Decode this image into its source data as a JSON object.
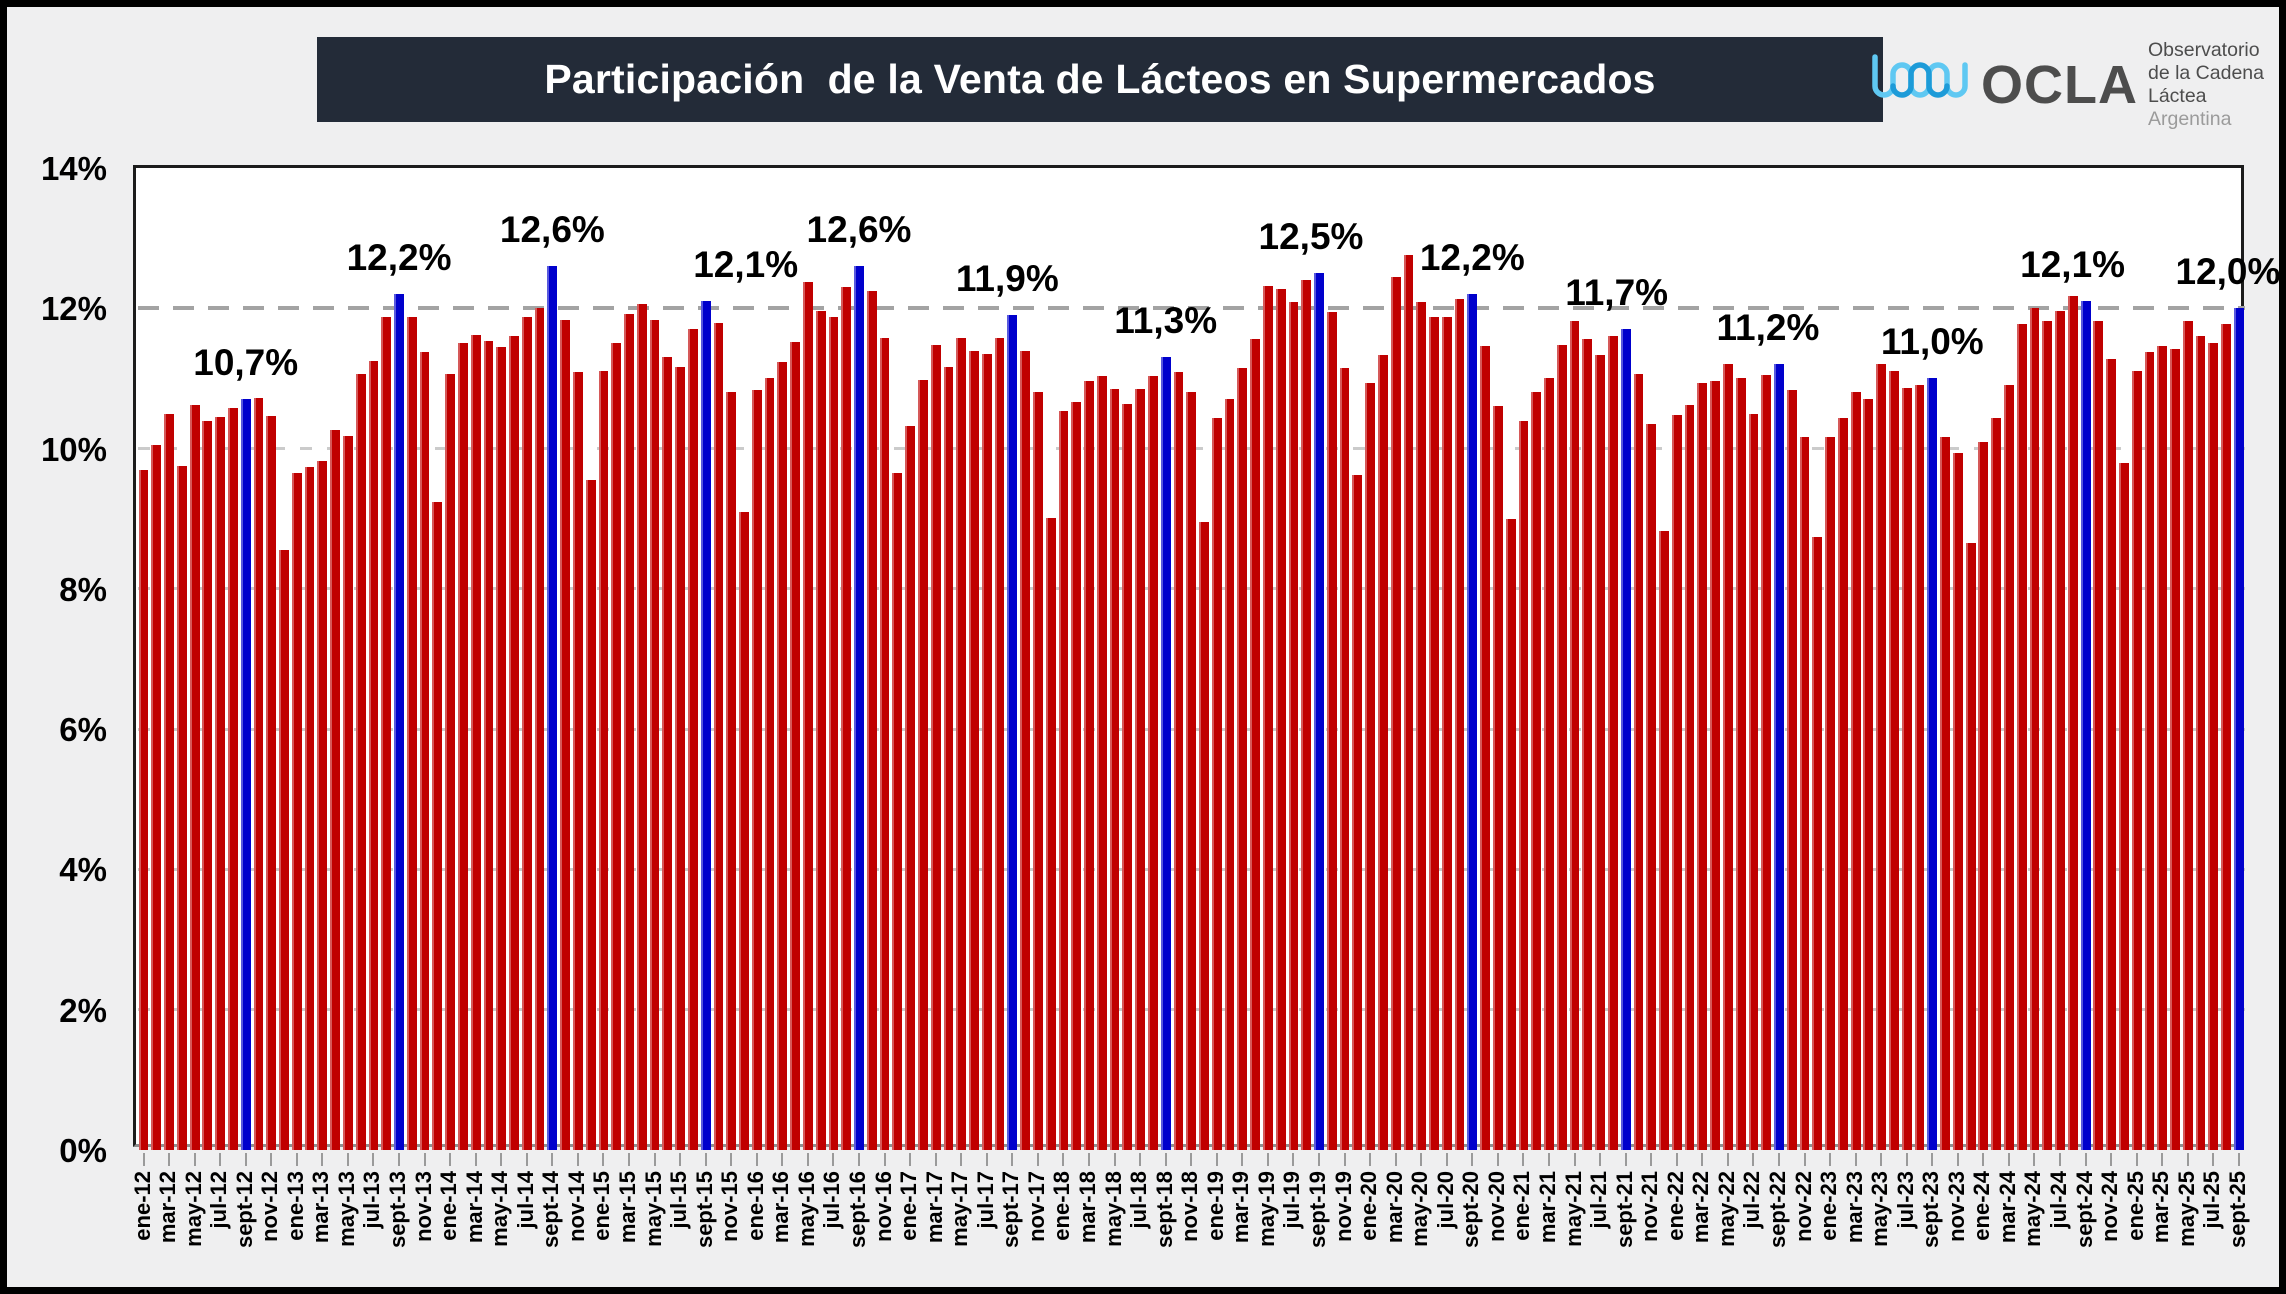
{
  "title": "Participación  de la Venta de Lácteos en Supermercados",
  "logo": {
    "acronym": "OCLA",
    "line1": "Observatorio",
    "line2": "de la Cadena Láctea",
    "line3": "Argentina"
  },
  "colors": {
    "bar": "#C00000",
    "highlight_bar": "#0000CC",
    "title_bg": "#232B38",
    "grid_light": "#CBCBCB",
    "grid_dark": "#A3A3A3",
    "page_bg": "#EFEFF0",
    "logo_blue": "#2FA8E1"
  },
  "chart_data": {
    "type": "bar",
    "title": "Participación  de la Venta de Lácteos en Supermercados",
    "xlabel": "",
    "ylabel": "",
    "ylim": [
      0,
      14
    ],
    "grid": true,
    "emphasized_gridline": "12%",
    "yticks": [
      "0%",
      "2%",
      "4%",
      "6%",
      "8%",
      "10%",
      "12%",
      "14%"
    ],
    "x_tick_step": 2,
    "start_month": "ene-12",
    "end_month": "sept-25",
    "x_tick_labels": [
      "ene-12",
      "mar-12",
      "may-12",
      "jul-12",
      "sept-12",
      "nov-12",
      "ene-13",
      "mar-13",
      "may-13",
      "jul-13",
      "sept-13",
      "nov-13",
      "ene-14",
      "mar-14",
      "may-14",
      "jul-14",
      "sept-14",
      "nov-14",
      "ene-15",
      "mar-15",
      "may-15",
      "jul-15",
      "sept-15",
      "nov-15",
      "ene-16",
      "mar-16",
      "may-16",
      "jul-16",
      "sept-16",
      "nov-16",
      "ene-17",
      "mar-17",
      "may-17",
      "jul-17",
      "sept-17",
      "nov-17",
      "ene-18",
      "mar-18",
      "may-18",
      "jul-18",
      "sept-18",
      "nov-18",
      "ene-19",
      "mar-19",
      "may-19",
      "jul-19",
      "sept-19",
      "nov-19",
      "ene-20",
      "mar-20",
      "may-20",
      "jul-20",
      "sept-20",
      "nov-20",
      "ene-21",
      "mar-21",
      "may-21",
      "jul-21",
      "sept-21",
      "nov-21",
      "ene-22",
      "mar-22",
      "may-22",
      "jul-22",
      "sept-22",
      "nov-22",
      "ene-23",
      "mar-23",
      "may-23",
      "jul-23",
      "sept-23",
      "nov-23",
      "ene-24",
      "mar-24",
      "may-24",
      "jul-24",
      "sept-24",
      "nov-24",
      "ene-25",
      "mar-25",
      "may-25",
      "jul-25",
      "sept-25"
    ],
    "values": [
      9.7,
      10.05,
      10.5,
      9.75,
      10.62,
      10.4,
      10.45,
      10.58,
      10.7,
      10.72,
      10.46,
      8.55,
      9.65,
      9.74,
      9.82,
      10.27,
      10.18,
      11.07,
      11.25,
      11.88,
      12.2,
      11.88,
      11.37,
      9.24,
      11.07,
      11.5,
      11.62,
      11.54,
      11.45,
      11.6,
      11.88,
      12.0,
      12.6,
      11.83,
      11.09,
      9.55,
      11.11,
      11.51,
      11.92,
      12.06,
      11.84,
      11.3,
      11.16,
      11.7,
      12.1,
      11.79,
      10.81,
      9.09,
      10.84,
      11.01,
      11.24,
      11.52,
      12.37,
      11.96,
      11.87,
      12.3,
      12.6,
      12.24,
      11.57,
      9.65,
      10.32,
      10.98,
      11.48,
      11.17,
      11.57,
      11.39,
      11.35,
      11.57,
      11.9,
      11.39,
      10.81,
      9.01,
      10.54,
      10.67,
      10.96,
      11.03,
      10.85,
      10.63,
      10.85,
      11.03,
      11.3,
      11.09,
      10.81,
      8.96,
      10.44,
      10.7,
      11.15,
      11.56,
      12.32,
      12.27,
      12.09,
      12.41,
      12.5,
      11.95,
      11.15,
      9.63,
      10.94,
      11.33,
      12.44,
      12.76,
      12.09,
      11.87,
      11.87,
      12.13,
      12.2,
      11.46,
      10.61,
      8.99,
      10.4,
      10.8,
      11.01,
      11.47,
      11.82,
      11.56,
      11.33,
      11.6,
      11.7,
      11.07,
      10.35,
      8.83,
      10.48,
      10.62,
      10.94,
      10.97,
      11.21,
      11.0,
      10.5,
      11.05,
      11.2,
      10.84,
      10.16,
      8.74,
      10.17,
      10.43,
      10.8,
      10.71,
      11.2,
      11.1,
      10.87,
      10.91,
      11.0,
      10.16,
      9.94,
      8.65,
      10.09,
      10.43,
      10.9,
      11.78,
      12.0,
      11.82,
      11.96,
      12.17,
      12.1,
      11.82,
      11.28,
      9.8,
      11.11,
      11.38,
      11.46,
      11.42,
      11.82,
      11.6,
      11.51,
      11.78,
      12.0
    ],
    "highlight_indices": [
      8,
      20,
      32,
      44,
      56,
      68,
      80,
      92,
      104,
      116,
      128,
      140,
      152,
      164
    ],
    "annotations": [
      {
        "index": 8,
        "label": "10,7%",
        "dx": 0
      },
      {
        "index": 20,
        "label": "12,2%",
        "dx": 0
      },
      {
        "index": 32,
        "label": "12,6%",
        "dx": 0
      },
      {
        "index": 44,
        "label": "12,1%",
        "dx": 40
      },
      {
        "index": 56,
        "label": "12,6%",
        "dx": 0
      },
      {
        "index": 68,
        "label": "11,9%",
        "dx": -5
      },
      {
        "index": 80,
        "label": "11,3%",
        "dx": 0
      },
      {
        "index": 92,
        "label": "12,5%",
        "dx": -8
      },
      {
        "index": 104,
        "label": "12,2%",
        "dx": 0
      },
      {
        "index": 116,
        "label": "11,7%",
        "dx": -9
      },
      {
        "index": 128,
        "label": "11,2%",
        "dx": -11
      },
      {
        "index": 140,
        "label": "11,0%",
        "dx": 0
      },
      {
        "index": 152,
        "label": "12,1%",
        "dx": -13
      },
      {
        "index": 164,
        "label": "12,0%",
        "dx": -11
      }
    ]
  }
}
